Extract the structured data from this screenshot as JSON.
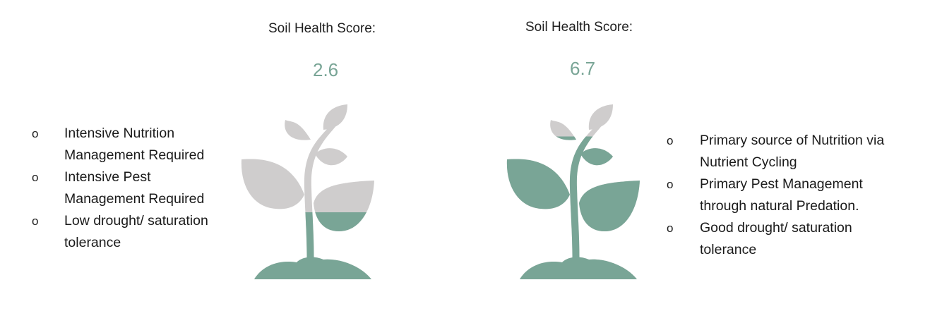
{
  "panels": [
    {
      "score_label": "Soil Health Score:",
      "score_value": "2.6",
      "fill_fraction": 0.38,
      "bullets": [
        "Intensive Nutrition Management Required",
        "Intensive Pest Management Required",
        "Low drought/ saturation tolerance"
      ]
    },
    {
      "score_label": "Soil Health Score:",
      "score_value": "6.7",
      "fill_fraction": 0.81,
      "bullets": [
        "Primary source of Nutrition via Nutrient Cycling",
        "Primary Pest Management through natural Predation.",
        "Good drought/ saturation tolerance"
      ]
    }
  ],
  "bullet_marker": "o",
  "colors": {
    "healthy": "#79a596",
    "unhealthy": "#cfcdcd"
  },
  "icon": "plant-icon"
}
